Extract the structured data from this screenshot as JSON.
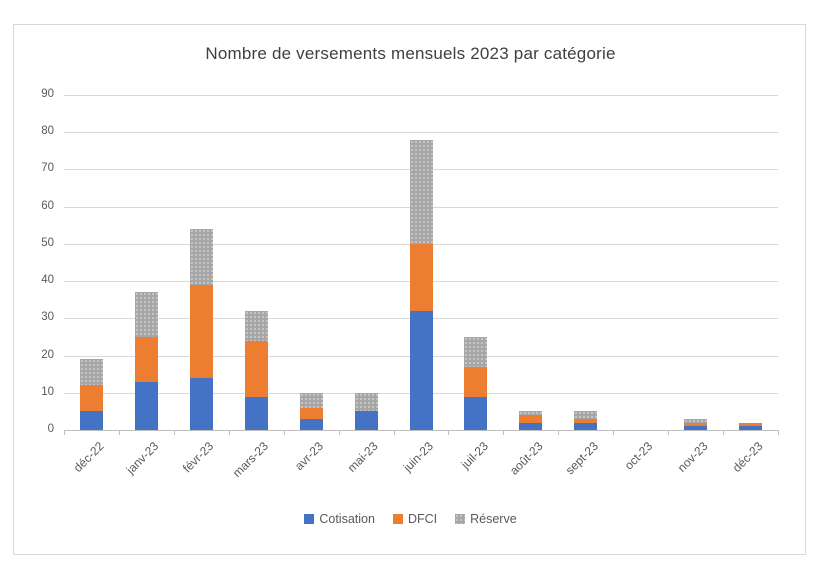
{
  "chart_data": {
    "type": "bar",
    "stacked": true,
    "title": "Nombre de versements mensuels 2023 par catégorie",
    "categories": [
      "déc-22",
      "janv-23",
      "févr-23",
      "mars-23",
      "avr-23",
      "mai-23",
      "juin-23",
      "juil-23",
      "août-23",
      "sept-23",
      "oct-23",
      "nov-23",
      "déc-23"
    ],
    "series": [
      {
        "name": "Cotisation",
        "color": "#4472C4",
        "pattern": false,
        "values": [
          5,
          13,
          14,
          9,
          3,
          5,
          32,
          9,
          2,
          2,
          0,
          1,
          1
        ]
      },
      {
        "name": "DFCI",
        "color": "#ED7D31",
        "pattern": false,
        "values": [
          7,
          12,
          25,
          15,
          3,
          0,
          18,
          8,
          2,
          1,
          0,
          1,
          1
        ]
      },
      {
        "name": "Réserve",
        "color": "#A6A6A6",
        "pattern": true,
        "values": [
          7,
          12,
          15,
          8,
          4,
          5,
          28,
          8,
          1,
          2,
          0,
          1,
          0
        ]
      }
    ],
    "totals": [
      19,
      37,
      54,
      32,
      10,
      10,
      78,
      25,
      5,
      5,
      0,
      3,
      2
    ],
    "xlabel": "",
    "ylabel": "",
    "ylim": [
      0,
      90
    ],
    "y_ticks": [
      0,
      10,
      20,
      30,
      40,
      50,
      60,
      70,
      80,
      90
    ],
    "grid": true,
    "legend_position": "bottom"
  },
  "colors": {
    "grid": "#D9D9D9",
    "axis": "#BFBFBF",
    "text": "#595959",
    "title": "#404040",
    "border": "#D9D9D9",
    "background": "#FFFFFF"
  }
}
